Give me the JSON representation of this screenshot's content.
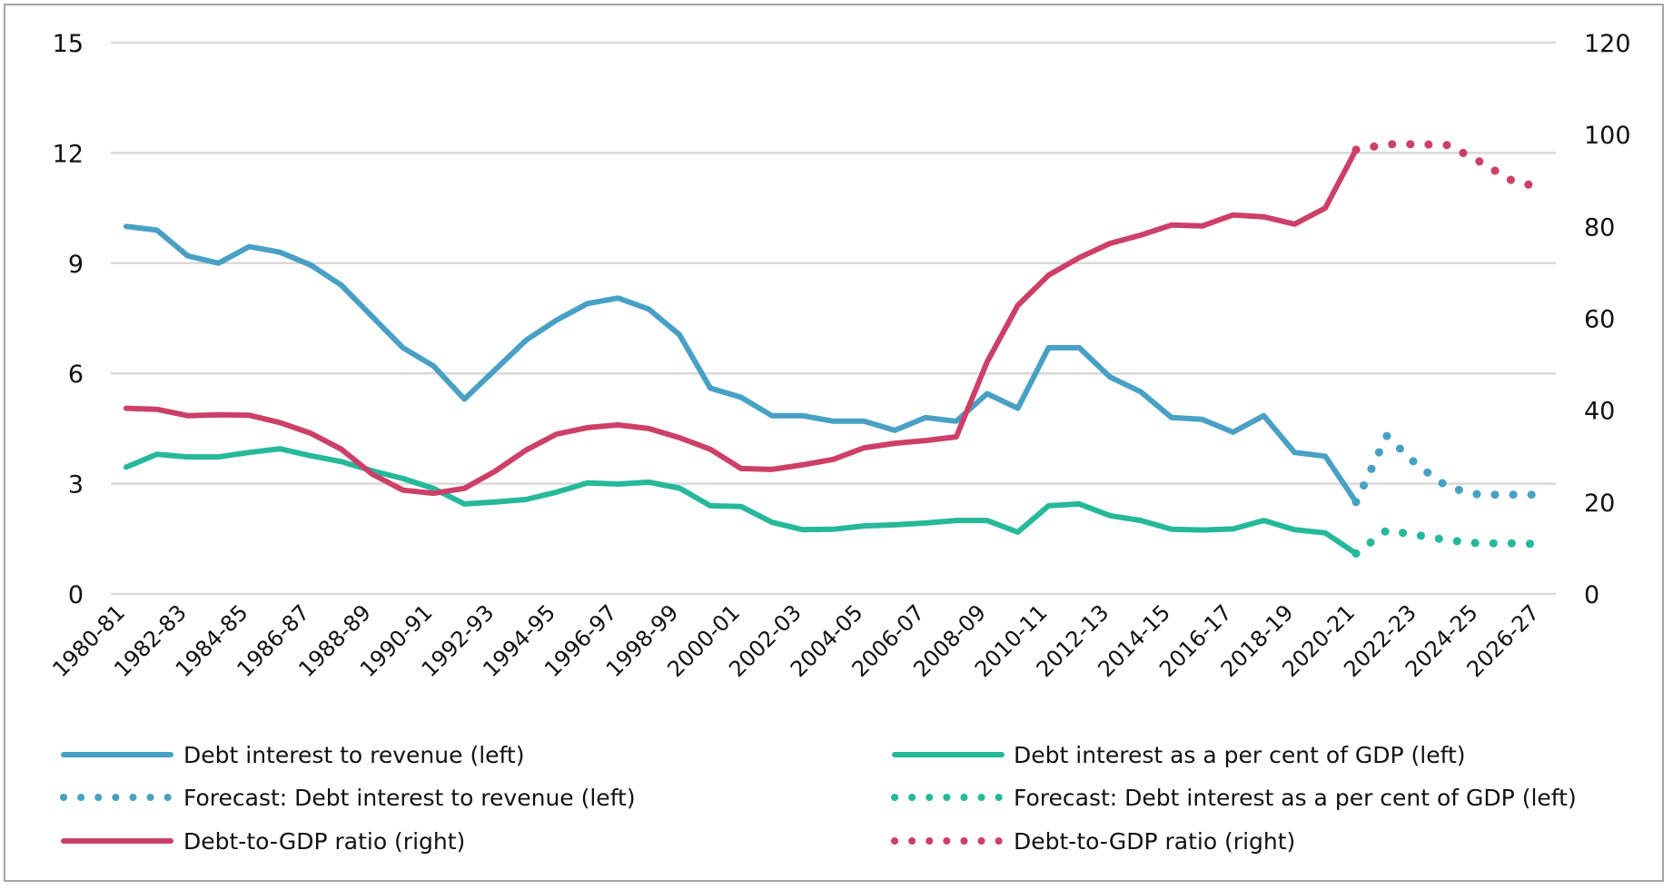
{
  "chart_data": {
    "type": "line",
    "title": "",
    "xlabel": "",
    "ylabel_left": "",
    "ylabel_right": "",
    "categories": [
      "1980-81",
      "1981-82",
      "1982-83",
      "1983-84",
      "1984-85",
      "1985-86",
      "1986-87",
      "1987-88",
      "1988-89",
      "1989-90",
      "1990-91",
      "1991-92",
      "1992-93",
      "1993-94",
      "1994-95",
      "1995-96",
      "1996-97",
      "1997-98",
      "1998-99",
      "1999-00",
      "2000-01",
      "2001-02",
      "2002-03",
      "2003-04",
      "2004-05",
      "2005-06",
      "2006-07",
      "2007-08",
      "2008-09",
      "2009-10",
      "2010-11",
      "2011-12",
      "2012-13",
      "2013-14",
      "2014-15",
      "2015-16",
      "2016-17",
      "2017-18",
      "2018-19",
      "2019-20",
      "2020-21",
      "2021-22",
      "2022-23",
      "2023-24",
      "2024-25",
      "2025-26",
      "2026-27"
    ],
    "x_tick_labels": [
      "1980-81",
      "1982-83",
      "1984-85",
      "1986-87",
      "1988-89",
      "1990-91",
      "1992-93",
      "1994-95",
      "1996-97",
      "1998-99",
      "2000-01",
      "2002-03",
      "2004-05",
      "2006-07",
      "2008-09",
      "2010-11",
      "2012-13",
      "2014-15",
      "2016-17",
      "2018-19",
      "2020-21",
      "2022-23",
      "2024-25",
      "2026-27"
    ],
    "y_left": {
      "ylim": [
        0,
        15
      ],
      "ticks": [
        0,
        3,
        6,
        9,
        12,
        15
      ]
    },
    "y_right": {
      "ylim": [
        0,
        120
      ],
      "ticks": [
        0,
        20,
        40,
        60,
        80,
        100,
        120
      ]
    },
    "grid": true,
    "legend_position": "bottom",
    "series": [
      {
        "name": "Debt interest to revenue (left)",
        "axis": "left",
        "style": "solid",
        "color": "#48a1c4",
        "start_index": 0,
        "values": [
          10.0,
          9.9,
          9.2,
          9.0,
          9.45,
          9.3,
          8.95,
          8.4,
          7.55,
          6.7,
          6.2,
          5.3,
          6.1,
          6.9,
          7.45,
          7.9,
          8.05,
          7.75,
          7.05,
          5.6,
          5.35,
          4.85,
          4.85,
          4.7,
          4.7,
          4.45,
          4.8,
          4.7,
          5.45,
          5.05,
          6.7,
          6.7,
          5.9,
          5.5,
          4.8,
          4.75,
          4.4,
          4.85,
          3.85,
          3.75,
          2.5
        ]
      },
      {
        "name": "Debt interest as a per cent of GDP (left)",
        "axis": "left",
        "style": "solid",
        "color": "#26b89b",
        "start_index": 0,
        "values": [
          3.45,
          3.8,
          3.73,
          3.73,
          3.85,
          3.95,
          3.76,
          3.6,
          3.35,
          3.14,
          2.87,
          2.45,
          2.5,
          2.57,
          2.77,
          3.02,
          2.99,
          3.04,
          2.88,
          2.4,
          2.38,
          1.95,
          1.75,
          1.76,
          1.85,
          1.88,
          1.93,
          2.0,
          2.0,
          1.68,
          2.4,
          2.45,
          2.13,
          2.0,
          1.76,
          1.74,
          1.77,
          2.0,
          1.75,
          1.66,
          1.1
        ]
      },
      {
        "name": "Forecast: Debt interest to revenue (left)",
        "axis": "left",
        "style": "dotted",
        "color": "#48a1c4",
        "start_index": 40,
        "values": [
          2.5,
          4.3,
          3.5,
          2.9,
          2.7,
          2.7,
          2.7
        ]
      },
      {
        "name": "Forecast: Debt interest as a per cent of GDP (left)",
        "axis": "left",
        "style": "dotted",
        "color": "#26b89b",
        "start_index": 40,
        "values": [
          1.1,
          1.73,
          1.6,
          1.46,
          1.38,
          1.38,
          1.36
        ]
      },
      {
        "name": "Debt-to-GDP ratio (right)",
        "axis": "right",
        "style": "solid",
        "color": "#cc4068",
        "start_index": 0,
        "values": [
          40.4,
          40.2,
          38.8,
          39.0,
          38.9,
          37.3,
          35.0,
          31.5,
          26.1,
          22.6,
          21.9,
          23.0,
          26.7,
          31.3,
          34.8,
          36.2,
          36.8,
          36.0,
          34.0,
          31.5,
          27.3,
          27.1,
          28.1,
          29.3,
          31.8,
          32.8,
          33.4,
          34.2,
          50.5,
          62.8,
          69.4,
          73.2,
          76.3,
          78.1,
          80.3,
          80.1,
          82.5,
          82.1,
          80.5,
          84.0,
          96.7
        ]
      },
      {
        "name": "Debt-to-GDP ratio (right)",
        "axis": "right",
        "style": "dotted",
        "color": "#cc4068",
        "start_index": 40,
        "values": [
          96.7,
          97.9,
          97.9,
          97.7,
          94.2,
          90.2,
          88.4
        ]
      }
    ]
  },
  "legend": {
    "items": [
      {
        "label": "Debt interest to revenue (left)",
        "style": "solid",
        "color": "#48a1c4"
      },
      {
        "label": "Debt interest as a per cent of GDP (left)",
        "style": "solid",
        "color": "#26b89b"
      },
      {
        "label": "Forecast: Debt interest to revenue (left)",
        "style": "dotted",
        "color": "#48a1c4"
      },
      {
        "label": "Forecast: Debt interest as a per cent of GDP (left)",
        "style": "dotted",
        "color": "#26b89b"
      },
      {
        "label": "Debt-to-GDP ratio (right)",
        "style": "solid",
        "color": "#cc4068"
      },
      {
        "label": "Debt-to-GDP ratio (right)",
        "style": "dotted",
        "color": "#cc4068"
      }
    ]
  },
  "colors": {
    "grid": "#d9d9d9",
    "frame": "#a6a6a6",
    "text": "#111111"
  }
}
